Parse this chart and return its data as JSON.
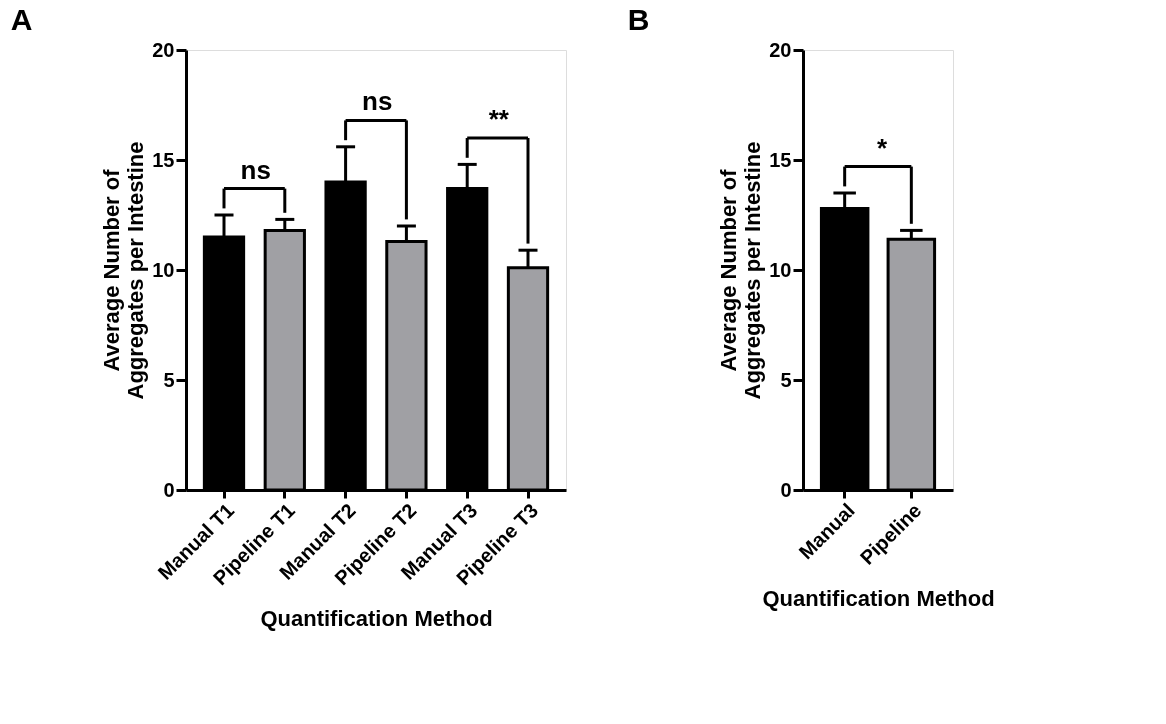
{
  "chart_data": [
    {
      "type": "bar",
      "title": "A",
      "categories": [
        "Manual T1",
        "Pipeline T1",
        "Manual T2",
        "Pipeline T2",
        "Manual T3",
        "Pipeline T3"
      ],
      "values": [
        11.5,
        11.8,
        14.0,
        11.3,
        13.7,
        10.1
      ],
      "errors": [
        1.0,
        0.5,
        1.6,
        0.7,
        1.1,
        0.8
      ],
      "colors": [
        "#000000",
        "#a0a0a4",
        "#000000",
        "#a0a0a4",
        "#000000",
        "#a0a0a4"
      ],
      "xlabel": "Quantification Method",
      "ylabel": "Average Number of\nAggregates per Intestine",
      "ylim": [
        0,
        20
      ],
      "yticks": [
        0,
        5,
        10,
        15,
        20
      ],
      "grid": false,
      "annotations": [
        "ns",
        "ns",
        "**"
      ]
    },
    {
      "type": "bar",
      "title": "B",
      "categories": [
        "Manual",
        "Pipeline"
      ],
      "values": [
        12.8,
        11.4
      ],
      "errors": [
        0.7,
        0.4
      ],
      "colors": [
        "#000000",
        "#a0a0a4"
      ],
      "xlabel": "Quantification Method",
      "ylabel": "Average Number of\nAggregates per Intestine",
      "ylim": [
        0,
        20
      ],
      "yticks": [
        0,
        5,
        10,
        15,
        20
      ],
      "grid": false,
      "annotations": [
        "*"
      ]
    }
  ]
}
